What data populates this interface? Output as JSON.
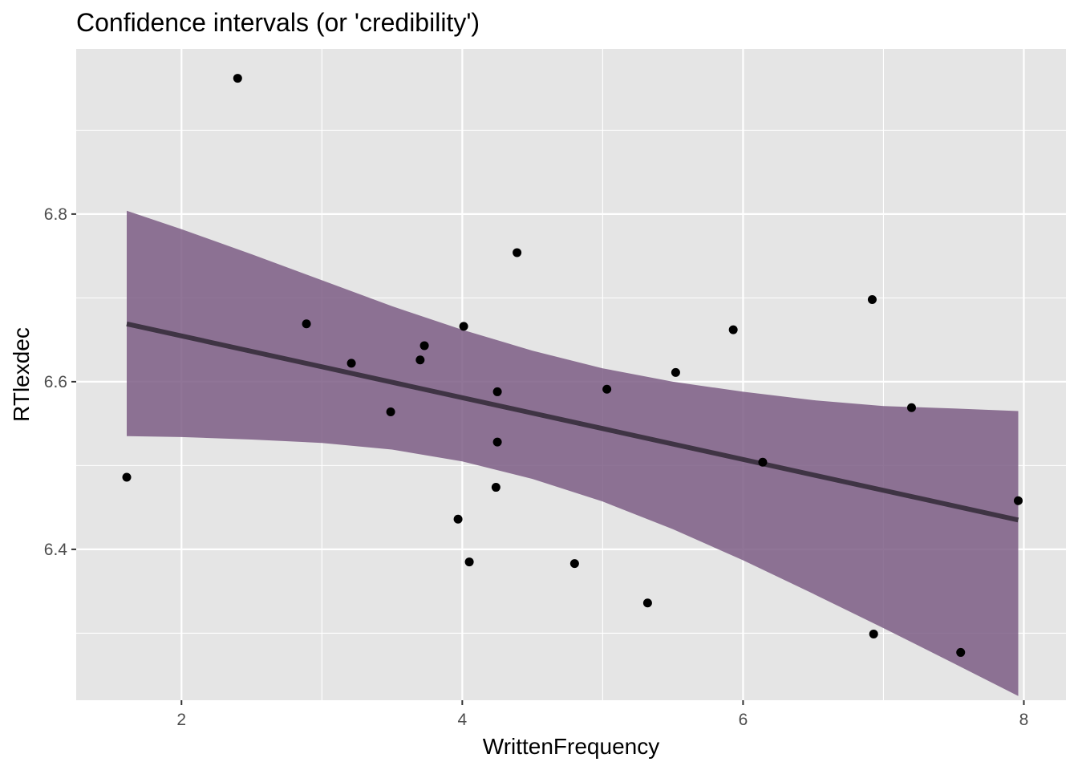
{
  "chart_data": {
    "type": "scatter",
    "title": "Confidence intervals (or 'credibility')",
    "xlabel": "WrittenFrequency",
    "ylabel": "RTlexdec",
    "xlim": [
      1.25,
      8.3
    ],
    "ylim": [
      6.22,
      6.997
    ],
    "x_ticks": [
      2,
      4,
      6,
      8
    ],
    "x_tick_labels": [
      "2",
      "4",
      "6",
      "8"
    ],
    "y_ticks": [
      6.4,
      6.6,
      6.8
    ],
    "y_tick_labels": [
      "6.4",
      "6.6",
      "6.8"
    ],
    "x_minor_gridlines": [
      3,
      5,
      7
    ],
    "y_minor_gridlines": [
      6.3,
      6.5,
      6.7,
      6.9
    ],
    "grid": true,
    "legend": "none",
    "points": {
      "x": [
        1.61,
        2.4,
        2.89,
        3.21,
        3.49,
        3.7,
        3.73,
        3.97,
        4.01,
        4.05,
        4.24,
        4.25,
        4.25,
        4.39,
        4.8,
        5.03,
        5.32,
        5.52,
        5.93,
        6.14,
        6.92,
        6.93,
        7.2,
        7.55,
        7.96
      ],
      "y": [
        6.486,
        6.962,
        6.669,
        6.622,
        6.564,
        6.626,
        6.643,
        6.436,
        6.666,
        6.385,
        6.474,
        6.528,
        6.588,
        6.754,
        6.383,
        6.591,
        6.336,
        6.611,
        6.662,
        6.504,
        6.698,
        6.299,
        6.569,
        6.277,
        6.458
      ]
    },
    "fit_line": {
      "x": [
        1.61,
        7.96
      ],
      "y": [
        6.669,
        6.435
      ]
    },
    "confidence_band": {
      "x": [
        1.61,
        2.0,
        2.5,
        3.0,
        3.5,
        4.0,
        4.5,
        5.0,
        5.5,
        6.0,
        6.5,
        7.0,
        7.5,
        7.96
      ],
      "lower": [
        6.535,
        6.534,
        6.531,
        6.527,
        6.519,
        6.505,
        6.484,
        6.457,
        6.424,
        6.387,
        6.347,
        6.306,
        6.264,
        6.225
      ],
      "upper": [
        6.804,
        6.782,
        6.752,
        6.721,
        6.69,
        6.662,
        6.637,
        6.616,
        6.6,
        6.588,
        6.578,
        6.571,
        6.568,
        6.565
      ]
    },
    "colors": {
      "panel_background": "#e5e5e5",
      "gridline": "#ffffff",
      "band_fill": "#7d5d85",
      "fit_line": "#3f3444",
      "points": "#000000"
    }
  }
}
